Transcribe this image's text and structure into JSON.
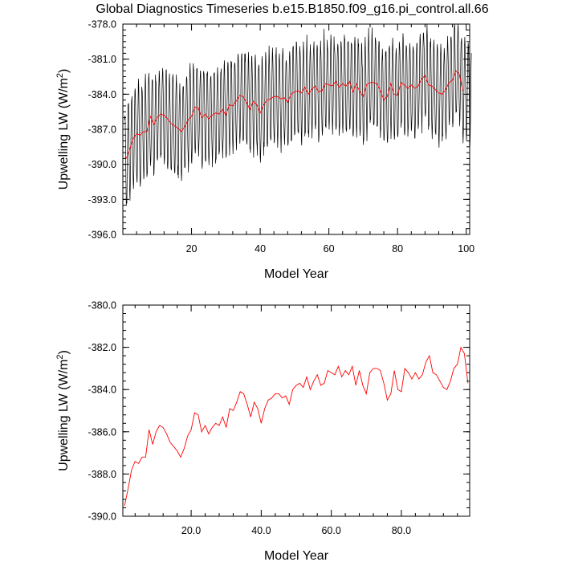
{
  "title": "Global Diagnostics Timeseries b.e15.B1850.f09_g16.pi_control.all.66",
  "colors": {
    "monthly": "#000000",
    "annual": "#ff0000",
    "frame": "#000000"
  },
  "chart_data": [
    {
      "type": "line",
      "name": "top-panel",
      "xlabel": "Model Year",
      "ylabel_main": "Upwelling LW (W/m",
      "ylabel_sup": "2",
      "ylabel_end": ")",
      "xlim": [
        0,
        101
      ],
      "ylim": [
        -396.0,
        -378.0
      ],
      "xticks": [
        20,
        40,
        60,
        80,
        100
      ],
      "xtick_labels": [
        "20",
        "40",
        "60",
        "80",
        "100"
      ],
      "yticks": [
        -396.0,
        -393.0,
        -390.0,
        -387.0,
        -384.0,
        -381.0,
        -378.0
      ],
      "ytick_labels": [
        "-396.0",
        "-393.0",
        "-390.0",
        "-387.0",
        "-384.0",
        "-381.0",
        "-378.0"
      ],
      "monthly_model": {
        "description_free": true,
        "years": 101,
        "amplitude_start": 4.2,
        "amplitude_end": 4.0
      },
      "series_annual_ref": "annual"
    },
    {
      "type": "line",
      "name": "bottom-panel",
      "xlabel": "Model Year",
      "ylabel_main": "Upwelling LW (W/m",
      "ylabel_sup": "2",
      "ylabel_end": ")",
      "xlim": [
        0.5,
        99.5
      ],
      "ylim": [
        -390.0,
        -380.0
      ],
      "xticks": [
        20,
        40,
        60,
        80
      ],
      "xtick_labels": [
        "20.0",
        "40.0",
        "60.0",
        "80.0"
      ],
      "yticks": [
        -390.0,
        -388.0,
        -386.0,
        -384.0,
        -382.0,
        -380.0
      ],
      "ytick_labels": [
        "-390.0",
        "-388.0",
        "-386.0",
        "-384.0",
        "-382.0",
        "-380.0"
      ]
    }
  ],
  "annual": {
    "x": [
      1,
      2,
      3,
      4,
      5,
      6,
      7,
      8,
      9,
      10,
      11,
      12,
      13,
      14,
      15,
      16,
      17,
      18,
      19,
      20,
      21,
      22,
      23,
      24,
      25,
      26,
      27,
      28,
      29,
      30,
      31,
      32,
      33,
      34,
      35,
      36,
      37,
      38,
      39,
      40,
      41,
      42,
      43,
      44,
      45,
      46,
      47,
      48,
      49,
      50,
      51,
      52,
      53,
      54,
      55,
      56,
      57,
      58,
      59,
      60,
      61,
      62,
      63,
      64,
      65,
      66,
      67,
      68,
      69,
      70,
      71,
      72,
      73,
      74,
      75,
      76,
      77,
      78,
      79,
      80,
      81,
      82,
      83,
      84,
      85,
      86,
      87,
      88,
      89,
      90,
      91,
      92,
      93,
      94,
      95,
      96,
      97,
      98,
      99
    ],
    "y": [
      -389.5,
      -388.7,
      -387.8,
      -387.4,
      -387.5,
      -387.2,
      -387.2,
      -385.9,
      -386.6,
      -386.0,
      -385.7,
      -385.8,
      -386.1,
      -386.5,
      -386.7,
      -386.9,
      -387.2,
      -386.8,
      -386.2,
      -385.9,
      -385.1,
      -385.2,
      -386.0,
      -385.7,
      -386.1,
      -385.8,
      -385.6,
      -385.7,
      -385.3,
      -385.8,
      -384.9,
      -385.0,
      -384.6,
      -384.1,
      -384.2,
      -384.7,
      -385.3,
      -384.6,
      -384.9,
      -385.6,
      -384.9,
      -384.5,
      -384.4,
      -384.2,
      -384.2,
      -384.4,
      -384.3,
      -384.7,
      -384.0,
      -383.8,
      -383.7,
      -383.9,
      -383.4,
      -384.0,
      -383.6,
      -383.3,
      -383.8,
      -383.7,
      -383.1,
      -383.2,
      -383.3,
      -382.9,
      -383.4,
      -383.1,
      -383.3,
      -382.9,
      -383.8,
      -383.1,
      -383.8,
      -384.2,
      -383.2,
      -383.0,
      -383.0,
      -383.1,
      -383.7,
      -384.5,
      -384.2,
      -383.1,
      -384.0,
      -384.1,
      -383.0,
      -383.2,
      -383.5,
      -383.2,
      -383.5,
      -383.3,
      -382.7,
      -382.4,
      -383.2,
      -383.3,
      -383.6,
      -383.9,
      -384.0,
      -383.6,
      -383.0,
      -382.8,
      -382.0,
      -382.3,
      -383.7
    ]
  }
}
